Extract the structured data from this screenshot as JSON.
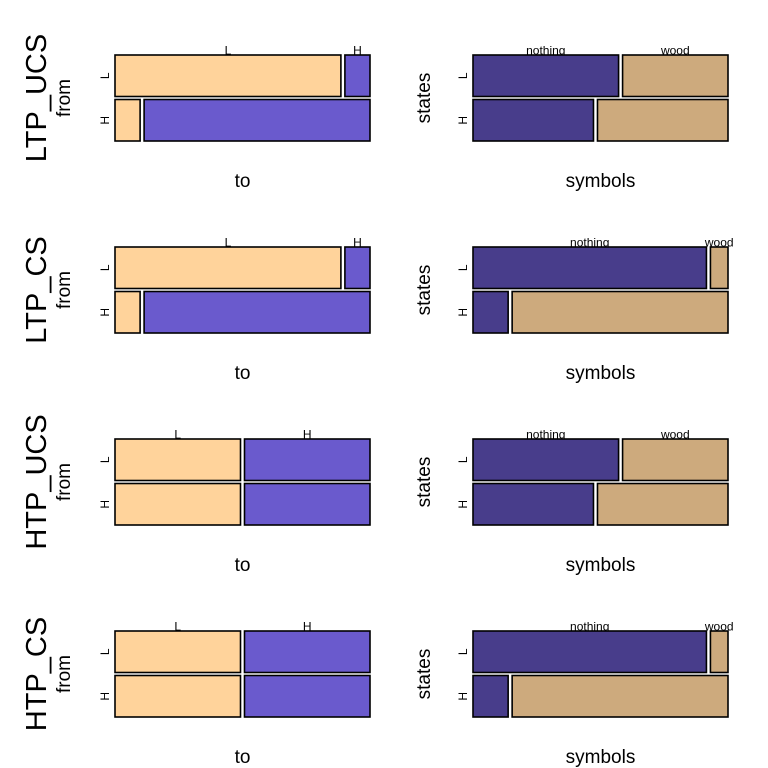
{
  "colors": {
    "L": "#FFD39B",
    "H": "#6A5ACD",
    "nothing": "#483D8B",
    "wood": "#CDAA7D",
    "outline": "#000000"
  },
  "chart_data": [
    {
      "row_title": "LTP_UCS",
      "panels": [
        {
          "type": "mosaic",
          "xlabel": "to",
          "ylabel": "from",
          "row_categories": [
            "L",
            "H"
          ],
          "col_categories": [
            "L",
            "H"
          ],
          "row_shares": [
            0.5,
            0.5
          ],
          "col_shares_by_row": [
            [
              0.9,
              0.1
            ],
            [
              0.1,
              0.9
            ]
          ]
        },
        {
          "type": "mosaic",
          "xlabel": "symbols",
          "ylabel": "states",
          "row_categories": [
            "L",
            "H"
          ],
          "col_categories": [
            "nothing",
            "wood"
          ],
          "row_shares": [
            0.5,
            0.5
          ],
          "col_shares_by_row": [
            [
              0.58,
              0.42
            ],
            [
              0.48,
              0.52
            ]
          ]
        }
      ]
    },
    {
      "row_title": "LTP_CS",
      "panels": [
        {
          "type": "mosaic",
          "xlabel": "to",
          "ylabel": "from",
          "row_categories": [
            "L",
            "H"
          ],
          "col_categories": [
            "L",
            "H"
          ],
          "row_shares": [
            0.5,
            0.5
          ],
          "col_shares_by_row": [
            [
              0.9,
              0.1
            ],
            [
              0.1,
              0.9
            ]
          ]
        },
        {
          "type": "mosaic",
          "xlabel": "symbols",
          "ylabel": "states",
          "row_categories": [
            "L",
            "H"
          ],
          "col_categories": [
            "nothing",
            "wood"
          ],
          "row_shares": [
            0.5,
            0.5
          ],
          "col_shares_by_row": [
            [
              0.93,
              0.07
            ],
            [
              0.14,
              0.86
            ]
          ]
        }
      ]
    },
    {
      "row_title": "HTP_UCS",
      "panels": [
        {
          "type": "mosaic",
          "xlabel": "to",
          "ylabel": "from",
          "row_categories": [
            "L",
            "H"
          ],
          "col_categories": [
            "L",
            "H"
          ],
          "row_shares": [
            0.5,
            0.5
          ],
          "col_shares_by_row": [
            [
              0.5,
              0.5
            ],
            [
              0.5,
              0.5
            ]
          ]
        },
        {
          "type": "mosaic",
          "xlabel": "symbols",
          "ylabel": "states",
          "row_categories": [
            "L",
            "H"
          ],
          "col_categories": [
            "nothing",
            "wood"
          ],
          "row_shares": [
            0.5,
            0.5
          ],
          "col_shares_by_row": [
            [
              0.58,
              0.42
            ],
            [
              0.48,
              0.52
            ]
          ]
        }
      ]
    },
    {
      "row_title": "HTP_CS",
      "panels": [
        {
          "type": "mosaic",
          "xlabel": "to",
          "ylabel": "from",
          "row_categories": [
            "L",
            "H"
          ],
          "col_categories": [
            "L",
            "H"
          ],
          "row_shares": [
            0.5,
            0.5
          ],
          "col_shares_by_row": [
            [
              0.5,
              0.5
            ],
            [
              0.5,
              0.5
            ]
          ]
        },
        {
          "type": "mosaic",
          "xlabel": "symbols",
          "ylabel": "states",
          "row_categories": [
            "L",
            "H"
          ],
          "col_categories": [
            "nothing",
            "wood"
          ],
          "row_shares": [
            0.5,
            0.5
          ],
          "col_shares_by_row": [
            [
              0.93,
              0.07
            ],
            [
              0.14,
              0.86
            ]
          ]
        }
      ]
    }
  ]
}
